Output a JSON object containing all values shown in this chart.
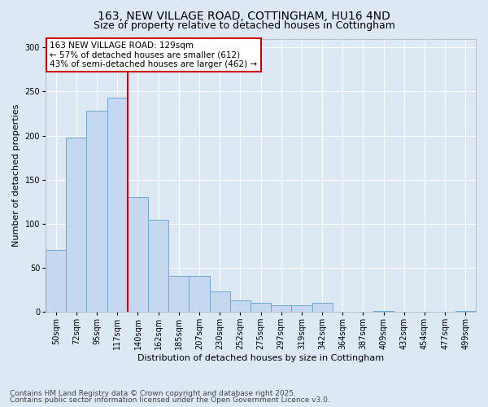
{
  "title1": "163, NEW VILLAGE ROAD, COTTINGHAM, HU16 4ND",
  "title2": "Size of property relative to detached houses in Cottingham",
  "xlabel": "Distribution of detached houses by size in Cottingham",
  "ylabel": "Number of detached properties",
  "categories": [
    "50sqm",
    "72sqm",
    "95sqm",
    "117sqm",
    "140sqm",
    "162sqm",
    "185sqm",
    "207sqm",
    "230sqm",
    "252sqm",
    "275sqm",
    "297sqm",
    "319sqm",
    "342sqm",
    "364sqm",
    "387sqm",
    "409sqm",
    "432sqm",
    "454sqm",
    "477sqm",
    "499sqm"
  ],
  "values": [
    70,
    198,
    228,
    243,
    130,
    104,
    41,
    41,
    23,
    13,
    10,
    7,
    7,
    10,
    0,
    0,
    1,
    0,
    0,
    0,
    1
  ],
  "bar_color": "#c5d8ef",
  "bar_edge_color": "#6fa8d0",
  "ref_line_color": "#cc0000",
  "annotation_text": "163 NEW VILLAGE ROAD: 129sqm\n← 57% of detached houses are smaller (612)\n43% of semi-detached houses are larger (462) →",
  "annotation_box_color": "#ffffff",
  "annotation_box_edge_color": "#cc0000",
  "ylim": [
    0,
    310
  ],
  "yticks": [
    0,
    50,
    100,
    150,
    200,
    250,
    300
  ],
  "footer1": "Contains HM Land Registry data © Crown copyright and database right 2025.",
  "footer2": "Contains public sector information licensed under the Open Government Licence v3.0.",
  "background_color": "#dde8f5",
  "plot_bg_color": "#dde8f5",
  "title_fontsize": 10,
  "subtitle_fontsize": 9,
  "axis_label_fontsize": 8,
  "tick_fontsize": 7,
  "footer_fontsize": 6.5,
  "annotation_fontsize": 7.5
}
